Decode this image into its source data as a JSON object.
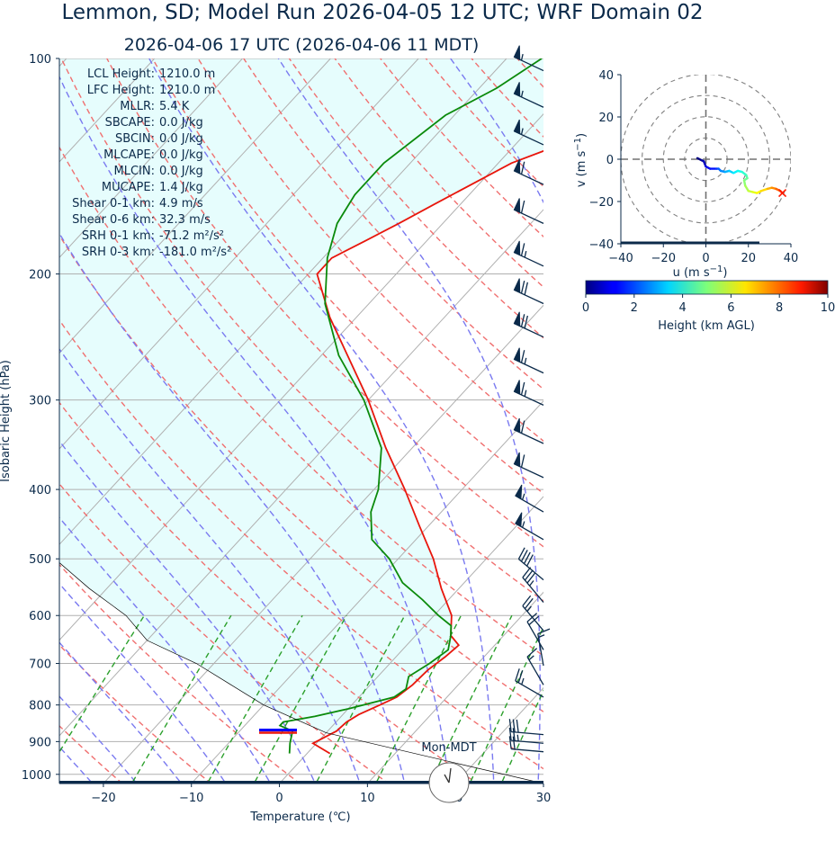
{
  "title": "Lemmon, SD; Model Run 2026-04-05 12 UTC; WRF Domain 02",
  "subtitle": "2026-04-06 17 UTC  (2026-04-06 11 MDT)",
  "clock_label": "Mon-MDT",
  "colors": {
    "temperature": "#e8160c",
    "dewpoint": "#0b8a0b",
    "parcel": "#000000",
    "cape_fill": "#e6fdfd",
    "dry_adiabat": "#f07070",
    "moist_adiabat": "#7a7af0",
    "mixing_ratio": "#2ca02c",
    "isotherm": "#b0b0b0",
    "text": "#0b2a4a"
  },
  "stats": [
    {
      "name": "LCL Height",
      "value": "1210.0 m"
    },
    {
      "name": "LFC Height",
      "value": "1210.0 m"
    },
    {
      "name": "MLLR",
      "value": "5.4 K"
    },
    {
      "name": "SBCAPE",
      "value": "0.0 J/kg"
    },
    {
      "name": "SBCIN",
      "value": "0.0 J/kg"
    },
    {
      "name": "MLCAPE",
      "value": "0.0 J/kg"
    },
    {
      "name": "MLCIN",
      "value": "0.0 J/kg"
    },
    {
      "name": "MUCAPE",
      "value": "1.4 J/kg"
    },
    {
      "name": "Shear 0-1 km",
      "value": "4.9 m/s"
    },
    {
      "name": "Shear 0-6 km",
      "value": "32.3 m/s"
    },
    {
      "name": "SRH 0-1 km",
      "value": "-71.2 m²/s²"
    },
    {
      "name": "SRH 0-3 km",
      "value": "-181.0 m²/s²"
    }
  ],
  "chart_data": [
    {
      "type": "line",
      "chart": "skew-t log-p",
      "xlabel": "Temperature (℃)",
      "ylabel": "Isobaric Height (hPa)",
      "xlim": [
        -25,
        30
      ],
      "ylim": [
        1030,
        100
      ],
      "x_ticks": [
        -20,
        -10,
        0,
        10,
        20,
        30
      ],
      "y_ticks": [
        100,
        200,
        300,
        400,
        500,
        600,
        700,
        800,
        900,
        1000
      ],
      "y_scale": "log",
      "series": [
        {
          "role": "temperature",
          "points": [
            [
              935,
              2.6
            ],
            [
              905,
              -0.4
            ],
            [
              870,
              1.0
            ],
            [
              845,
              1.2
            ],
            [
              825,
              1.8
            ],
            [
              800,
              3.2
            ],
            [
              780,
              4.3
            ],
            [
              750,
              4.8
            ],
            [
              715,
              5.0
            ],
            [
              685,
              5.6
            ],
            [
              660,
              5.9
            ],
            [
              640,
              4.0
            ],
            [
              600,
              2.0
            ],
            [
              550,
              -2.0
            ],
            [
              500,
              -6.0
            ],
            [
              450,
              -11.0
            ],
            [
              400,
              -16.5
            ],
            [
              350,
              -23.0
            ],
            [
              300,
              -30.0
            ],
            [
              260,
              -37.0
            ],
            [
              230,
              -43.0
            ],
            [
              200,
              -49.0
            ],
            [
              190,
              -49.0
            ],
            [
              180,
              -47.0
            ],
            [
              170,
              -45.0
            ],
            [
              160,
              -43.0
            ],
            [
              140,
              -38.5
            ],
            [
              130,
              -34.0
            ],
            [
              115,
              -31.0
            ],
            [
              100,
              -29.0
            ]
          ]
        },
        {
          "role": "dewpoint",
          "points": [
            [
              935,
              -2.0
            ],
            [
              905,
              -3.0
            ],
            [
              870,
              -4.0
            ],
            [
              855,
              -6.0
            ],
            [
              845,
              -6.0
            ],
            [
              830,
              -3.0
            ],
            [
              810,
              0.0
            ],
            [
              780,
              4.0
            ],
            [
              760,
              4.5
            ],
            [
              730,
              3.5
            ],
            [
              700,
              4.5
            ],
            [
              670,
              5.2
            ],
            [
              640,
              4.0
            ],
            [
              620,
              3.0
            ],
            [
              600,
              0.5
            ],
            [
              570,
              -3.0
            ],
            [
              540,
              -7.0
            ],
            [
              500,
              -11.0
            ],
            [
              470,
              -15.0
            ],
            [
              430,
              -18.0
            ],
            [
              400,
              -19.5
            ],
            [
              350,
              -23.5
            ],
            [
              300,
              -30.5
            ],
            [
              260,
              -38.0
            ],
            [
              220,
              -45.0
            ],
            [
              190,
              -49.5
            ],
            [
              170,
              -52.0
            ],
            [
              155,
              -53.0
            ],
            [
              140,
              -53.0
            ],
            [
              120,
              -51.0
            ],
            [
              110,
              -48.0
            ],
            [
              100,
              -46.0
            ]
          ]
        },
        {
          "role": "parcel",
          "points": [
            [
              1030,
              30.0
            ],
            [
              875,
              0.0
            ],
            [
              800,
              -10.0
            ],
            [
              700,
              -22.0
            ],
            [
              650,
              -30.0
            ],
            [
              600,
              -35.0
            ],
            [
              550,
              -42.0
            ],
            [
              500,
              -49.0
            ],
            [
              450,
              -56.0
            ],
            [
              400,
              -63.0
            ],
            [
              350,
              -71.0
            ],
            [
              300,
              -79.0
            ],
            [
              250,
              -89.0
            ],
            [
              200,
              -100.0
            ],
            [
              150,
              -113.0
            ],
            [
              100,
              -130.0
            ]
          ]
        }
      ],
      "lcl_pressure": 872,
      "surface_pressure": 1030,
      "wind_barbs": [
        {
          "p": 930,
          "spd_kt": 20,
          "dir": 275
        },
        {
          "p": 905,
          "spd_kt": 25,
          "dir": 275
        },
        {
          "p": 880,
          "spd_kt": 30,
          "dir": 275
        },
        {
          "p": 780,
          "spd_kt": 25,
          "dir": 300
        },
        {
          "p": 750,
          "spd_kt": 15,
          "dir": 330
        },
        {
          "p": 705,
          "spd_kt": 15,
          "dir": 350
        },
        {
          "p": 670,
          "spd_kt": 20,
          "dir": 330
        },
        {
          "p": 630,
          "spd_kt": 25,
          "dir": 320
        },
        {
          "p": 575,
          "spd_kt": 35,
          "dir": 320
        },
        {
          "p": 535,
          "spd_kt": 40,
          "dir": 310
        },
        {
          "p": 470,
          "spd_kt": 55,
          "dir": 300
        },
        {
          "p": 430,
          "spd_kt": 55,
          "dir": 300
        },
        {
          "p": 385,
          "spd_kt": 60,
          "dir": 295
        },
        {
          "p": 345,
          "spd_kt": 60,
          "dir": 295
        },
        {
          "p": 305,
          "spd_kt": 65,
          "dir": 295
        },
        {
          "p": 275,
          "spd_kt": 65,
          "dir": 295
        },
        {
          "p": 245,
          "spd_kt": 70,
          "dir": 295
        },
        {
          "p": 220,
          "spd_kt": 70,
          "dir": 295
        },
        {
          "p": 195,
          "spd_kt": 65,
          "dir": 295
        },
        {
          "p": 170,
          "spd_kt": 60,
          "dir": 295
        },
        {
          "p": 150,
          "spd_kt": 60,
          "dir": 295
        },
        {
          "p": 132,
          "spd_kt": 55,
          "dir": 295
        },
        {
          "p": 117,
          "spd_kt": 55,
          "dir": 295
        },
        {
          "p": 104,
          "spd_kt": 55,
          "dir": 295
        }
      ]
    },
    {
      "type": "line",
      "chart": "hodograph",
      "xlabel": "u (m s",
      "ylabel": "v (m s",
      "unit_exponent": "−1",
      "xlim": [
        -40,
        40
      ],
      "ylim": [
        -40,
        40
      ],
      "x_ticks": [
        -40,
        -20,
        0,
        20,
        40
      ],
      "y_ticks": [
        -40,
        -20,
        0,
        20,
        40
      ],
      "rings": [
        10,
        20,
        30,
        40
      ],
      "points": [
        {
          "u": -4,
          "v": 0.5,
          "h": 0.0
        },
        {
          "u": -2,
          "v": -0.5,
          "h": 0.3
        },
        {
          "u": -1,
          "v": -1.0,
          "h": 0.6
        },
        {
          "u": 0,
          "v": -3.5,
          "h": 1.0
        },
        {
          "u": 2,
          "v": -4.5,
          "h": 1.4
        },
        {
          "u": 5,
          "v": -4.5,
          "h": 1.8
        },
        {
          "u": 6,
          "v": -4.5,
          "h": 2.2
        },
        {
          "u": 7,
          "v": -5.5,
          "h": 2.6
        },
        {
          "u": 9,
          "v": -6.0,
          "h": 3.0
        },
        {
          "u": 11,
          "v": -5.5,
          "h": 3.3
        },
        {
          "u": 13,
          "v": -6.5,
          "h": 3.6
        },
        {
          "u": 15,
          "v": -5.5,
          "h": 3.9
        },
        {
          "u": 17,
          "v": -6.0,
          "h": 4.2
        },
        {
          "u": 19,
          "v": -7.5,
          "h": 4.5
        },
        {
          "u": 19.5,
          "v": -9.0,
          "h": 4.8
        },
        {
          "u": 18,
          "v": -10.0,
          "h": 5.1
        },
        {
          "u": 18.5,
          "v": -12.5,
          "h": 5.4
        },
        {
          "u": 20,
          "v": -15.0,
          "h": 5.7
        },
        {
          "u": 22,
          "v": -15.5,
          "h": 6.0
        },
        {
          "u": 24,
          "v": -16.0,
          "h": 6.3
        },
        {
          "u": 26,
          "v": -15.0,
          "h": 6.6
        },
        {
          "u": 29,
          "v": -14.0,
          "h": 7.0
        },
        {
          "u": 31,
          "v": -13.5,
          "h": 7.4
        },
        {
          "u": 33,
          "v": -14.0,
          "h": 7.8
        },
        {
          "u": 35,
          "v": -15.0,
          "h": 8.2
        },
        {
          "u": 36,
          "v": -16.0,
          "h": 8.5
        }
      ]
    },
    {
      "type": "heatmap",
      "chart": "colorbar",
      "xlabel": "Height (km AGL)",
      "xlim": [
        0,
        10
      ],
      "x_ticks": [
        0,
        2,
        4,
        6,
        8,
        10
      ],
      "colormap": "jet"
    }
  ]
}
